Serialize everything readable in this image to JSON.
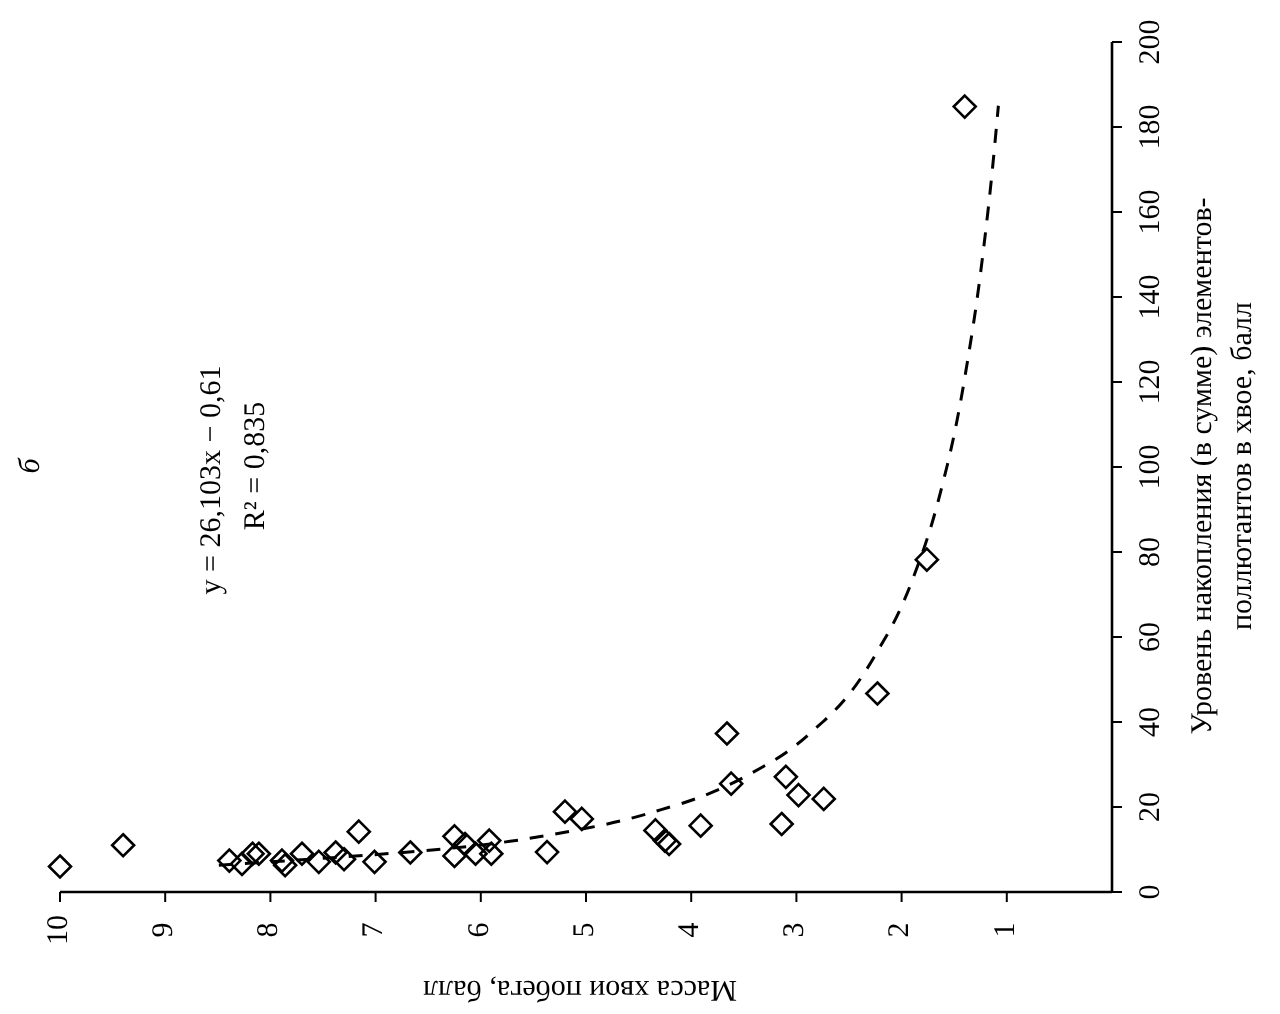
{
  "chart_data": {
    "type": "scatter",
    "title": "б",
    "ylabel": "Уровень накопления (в сумме) элементов-\nполлютантов в хвое, балл",
    "xlabel": "Масса хвои побега, балл",
    "annotations": [
      "y = 26,103x − 0,61",
      "R² = 0,835"
    ],
    "ylim": [
      0,
      200
    ],
    "yticks": [
      0,
      20,
      40,
      60,
      80,
      100,
      120,
      140,
      160,
      180,
      200
    ],
    "xlim": [
      10,
      0
    ],
    "xticks": [
      10,
      9,
      8,
      7,
      6,
      5,
      4,
      3,
      2,
      1
    ],
    "series": [
      {
        "color": "#000000",
        "marker": "diamond",
        "values": [
          6,
          11,
          7.4,
          6.6,
          9,
          9,
          7.4,
          6.3,
          9,
          7.1,
          9.3,
          7.7,
          14.2,
          7.1,
          9.3,
          13.1,
          8.5,
          11.3,
          9,
          12.1,
          9,
          9.4,
          18.9,
          17.2,
          14.5,
          12.1,
          11.3,
          15.6,
          37.3,
          25.5,
          16,
          27.1,
          22.8,
          21.9,
          46.7,
          78.2,
          184.8
        ],
        "x": [
          10,
          9.4,
          8.39,
          8.27,
          8.17,
          8.11,
          7.89,
          7.86,
          7.7,
          7.54,
          7.38,
          7.3,
          7.16,
          7.01,
          6.67,
          6.25,
          6.25,
          6.15,
          6.05,
          5.92,
          5.9,
          5.37,
          5.2,
          5.04,
          4.34,
          4.25,
          4.21,
          3.91,
          3.66,
          3.62,
          3.14,
          3.1,
          2.98,
          2.74,
          2.23,
          1.76,
          1.4
        ]
      },
      {
        "type": "line",
        "color": "#000000",
        "marker": "none",
        "line_style": "dashed",
        "values": [
          6.3,
          10,
          15,
          20,
          30,
          40,
          60,
          80,
          100,
          130,
          160,
          185
        ],
        "x": [
          8.49,
          6.41,
          5.0,
          4.2,
          3.28,
          2.75,
          2.15,
          1.8,
          1.57,
          1.34,
          1.18,
          1.08
        ]
      }
    ]
  }
}
